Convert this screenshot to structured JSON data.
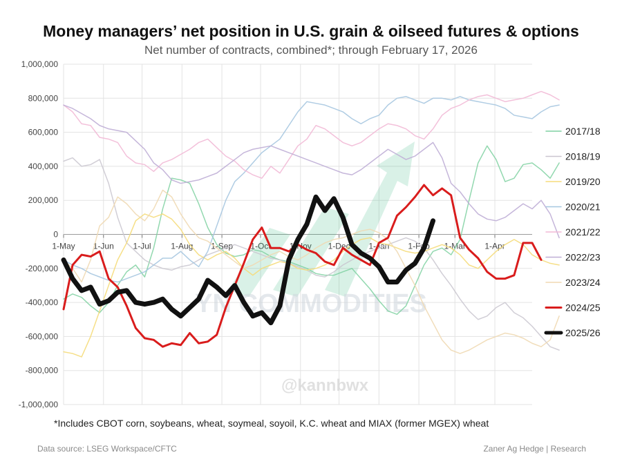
{
  "chart_data": {
    "type": "line",
    "title": "Money managers’ net position in U.S. grain & oilseed futures & options",
    "subtitle": "Net number of contracts, combined*; through February 17, 2026",
    "ylim": [
      -1000000,
      1000000
    ],
    "yticks": [
      1000000,
      800000,
      600000,
      400000,
      200000,
      0,
      -200000,
      -400000,
      -600000,
      -800000,
      -1000000
    ],
    "ytick_labels": [
      "1,000,000",
      "800,000",
      "600,000",
      "400,000",
      "200,000",
      "0",
      "-200,000",
      "-400,000",
      "-600,000",
      "-800,000",
      "-1,000,000"
    ],
    "x_range": [
      0,
      52
    ],
    "xticks": [
      0,
      4.43,
      8.71,
      13.14,
      17.57,
      21.86,
      26.29,
      30.57,
      35.0,
      39.43,
      43.43,
      47.86
    ],
    "xtick_labels": [
      "1-May",
      "1-Jun",
      "1-Jul",
      "1-Aug",
      "1-Sep",
      "1-Oct",
      "1-Nov",
      "1-Dec",
      "1-Jan",
      "1-Feb",
      "1-Mar",
      "1-Apr"
    ],
    "x_unit": "weeks since 1-May",
    "series": [
      {
        "name": "2017/18",
        "color": "#7fd1a1",
        "width": 1.5,
        "opacity": 0.85,
        "values": [
          -380000,
          -350000,
          -370000,
          -420000,
          -460000,
          -400000,
          -300000,
          -220000,
          -180000,
          -250000,
          -80000,
          150000,
          330000,
          320000,
          300000,
          180000,
          40000,
          -60000,
          -110000,
          -130000,
          -120000,
          -90000,
          -100000,
          -130000,
          -150000,
          -160000,
          -180000,
          -200000,
          -230000,
          -240000,
          -240000,
          -220000,
          -200000,
          -260000,
          -320000,
          -390000,
          -450000,
          -470000,
          -420000,
          -300000,
          -180000,
          -100000,
          -80000,
          -120000,
          -30000,
          200000,
          420000,
          520000,
          440000,
          310000,
          330000,
          410000,
          420000,
          380000,
          330000,
          420000
        ]
      },
      {
        "name": "2018/19",
        "color": "#c9c5cf",
        "width": 1.5,
        "opacity": 0.85,
        "values": [
          430000,
          450000,
          400000,
          410000,
          440000,
          300000,
          100000,
          -50000,
          -100000,
          -150000,
          -180000,
          -200000,
          -210000,
          -190000,
          -180000,
          -150000,
          -120000,
          -100000,
          -80000,
          -60000,
          -80000,
          -100000,
          -120000,
          -140000,
          -150000,
          -170000,
          -190000,
          -210000,
          -240000,
          -250000,
          -220000,
          -180000,
          -150000,
          -120000,
          -100000,
          -80000,
          -60000,
          -40000,
          -20000,
          -40000,
          -80000,
          -150000,
          -230000,
          -300000,
          -380000,
          -450000,
          -500000,
          -480000,
          -430000,
          -400000,
          -460000,
          -490000,
          -540000,
          -600000,
          -660000,
          -680000
        ]
      },
      {
        "name": "2019/20",
        "color": "#f5dc7a",
        "width": 1.5,
        "opacity": 0.9,
        "values": [
          -690000,
          -700000,
          -720000,
          -600000,
          -450000,
          -300000,
          -150000,
          -50000,
          80000,
          120000,
          100000,
          120000,
          90000,
          30000,
          -60000,
          -120000,
          -150000,
          -120000,
          -100000,
          -140000,
          -200000,
          -240000,
          -200000,
          -180000,
          -160000,
          -170000,
          -200000,
          -210000,
          -200000,
          -180000,
          -150000,
          -100000,
          -60000,
          -30000,
          -20000,
          -50000,
          -60000,
          -80000,
          -100000,
          -110000,
          -100000,
          -80000,
          -60000,
          -80000,
          -120000,
          -180000,
          -200000,
          -150000,
          -100000,
          -60000,
          -30000,
          -60000,
          -120000,
          -150000,
          -170000,
          -180000
        ]
      },
      {
        "name": "2020/21",
        "color": "#a6c7e0",
        "width": 1.5,
        "opacity": 0.9,
        "values": [
          -150000,
          -180000,
          -200000,
          -230000,
          -250000,
          -270000,
          -280000,
          -260000,
          -240000,
          -220000,
          -180000,
          -140000,
          -140000,
          -100000,
          -150000,
          -190000,
          -100000,
          50000,
          200000,
          310000,
          360000,
          420000,
          480000,
          520000,
          560000,
          640000,
          720000,
          780000,
          770000,
          760000,
          740000,
          720000,
          680000,
          650000,
          680000,
          700000,
          760000,
          800000,
          810000,
          790000,
          770000,
          800000,
          800000,
          790000,
          810000,
          790000,
          780000,
          770000,
          760000,
          740000,
          700000,
          690000,
          680000,
          720000,
          750000,
          760000
        ]
      },
      {
        "name": "2021/22",
        "color": "#f2b9d6",
        "width": 1.5,
        "opacity": 0.9,
        "values": [
          760000,
          720000,
          650000,
          640000,
          570000,
          560000,
          540000,
          460000,
          420000,
          410000,
          370000,
          420000,
          440000,
          470000,
          500000,
          540000,
          560000,
          510000,
          460000,
          430000,
          380000,
          350000,
          330000,
          400000,
          360000,
          440000,
          520000,
          560000,
          640000,
          620000,
          580000,
          540000,
          520000,
          540000,
          580000,
          620000,
          650000,
          640000,
          620000,
          580000,
          560000,
          620000,
          700000,
          740000,
          760000,
          790000,
          810000,
          820000,
          800000,
          780000,
          790000,
          800000,
          820000,
          840000,
          820000,
          790000
        ]
      },
      {
        "name": "2022/23",
        "color": "#bfaed6",
        "width": 1.5,
        "opacity": 0.9,
        "values": [
          760000,
          740000,
          710000,
          680000,
          640000,
          620000,
          610000,
          600000,
          550000,
          500000,
          420000,
          380000,
          320000,
          300000,
          310000,
          320000,
          340000,
          360000,
          400000,
          440000,
          480000,
          500000,
          510000,
          520000,
          500000,
          480000,
          460000,
          440000,
          420000,
          400000,
          380000,
          360000,
          350000,
          380000,
          420000,
          460000,
          500000,
          470000,
          440000,
          460000,
          500000,
          540000,
          450000,
          300000,
          250000,
          180000,
          120000,
          90000,
          80000,
          100000,
          140000,
          180000,
          150000,
          200000,
          120000,
          -20000
        ]
      },
      {
        "name": "2023/24",
        "color": "#f0d9b2",
        "width": 1.5,
        "opacity": 0.9,
        "values": [
          -150000,
          -200000,
          -280000,
          -150000,
          50000,
          100000,
          220000,
          180000,
          120000,
          80000,
          150000,
          260000,
          220000,
          120000,
          40000,
          -20000,
          -40000,
          -80000,
          -120000,
          -160000,
          -200000,
          -180000,
          -150000,
          -120000,
          -100000,
          -130000,
          -150000,
          -120000,
          -80000,
          -50000,
          -30000,
          -20000,
          0,
          20000,
          30000,
          10000,
          -30000,
          -100000,
          -200000,
          -300000,
          -420000,
          -520000,
          -620000,
          -680000,
          -700000,
          -680000,
          -650000,
          -620000,
          -600000,
          -580000,
          -590000,
          -610000,
          -640000,
          -660000,
          -620000,
          -480000
        ]
      },
      {
        "name": "2024/25",
        "color": "#d91c1c",
        "width": 3,
        "opacity": 1,
        "values": [
          -440000,
          -180000,
          -120000,
          -130000,
          -100000,
          -260000,
          -310000,
          -420000,
          -550000,
          -610000,
          -620000,
          -660000,
          -640000,
          -650000,
          -580000,
          -640000,
          -630000,
          -590000,
          -430000,
          -300000,
          -170000,
          -30000,
          40000,
          -80000,
          -80000,
          -100000,
          -60000,
          -90000,
          -110000,
          -160000,
          -180000,
          -80000,
          -120000,
          -150000,
          -180000,
          -50000,
          -20000,
          110000,
          160000,
          220000,
          290000,
          230000,
          270000,
          230000,
          -20000,
          -90000,
          -140000,
          -220000,
          -260000,
          -260000,
          -240000,
          -50000,
          -50000,
          -150000
        ]
      },
      {
        "name": "2025/26",
        "color": "#111111",
        "width": 7,
        "opacity": 1,
        "values": [
          -150000,
          -260000,
          -330000,
          -310000,
          -410000,
          -390000,
          -340000,
          -330000,
          -400000,
          -410000,
          -400000,
          -380000,
          -440000,
          -480000,
          -430000,
          -380000,
          -270000,
          -310000,
          -360000,
          -300000,
          -400000,
          -480000,
          -460000,
          -520000,
          -420000,
          -150000,
          -30000,
          60000,
          220000,
          140000,
          210000,
          100000,
          -60000,
          -110000,
          -140000,
          -190000,
          -280000,
          -280000,
          -210000,
          -170000,
          -80000,
          80000
        ]
      }
    ],
    "legend_position": "right"
  },
  "footnote": "*Includes CBOT corn, soybeans, wheat, soymeal, soyoil, K.C. wheat and MIAX (former MGEX) wheat",
  "source_left": "Data source: LSEG Workspace/CFTC",
  "source_right": "Zaner Ag Hedge | Research",
  "watermark_main": "YN COMMODITIES",
  "watermark_handle": "@kannbwx"
}
